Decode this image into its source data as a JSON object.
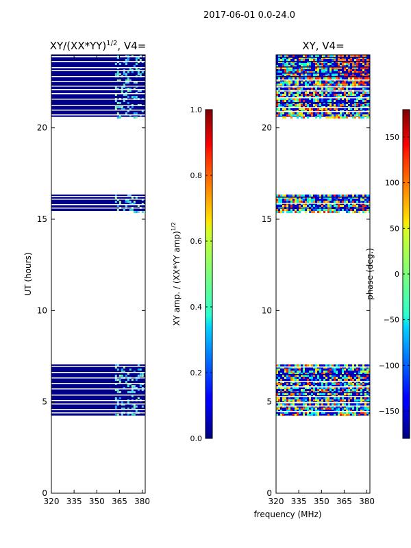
{
  "figure_title": "2017-06-01 0.0-24.0",
  "shared_xlabel": "frequency (MHz)",
  "colors": {
    "amp_fill": "#00008b",
    "amp_speckle": [
      "#6fd3ff",
      "#3fe0c8",
      "#9ff0a0",
      "#1ea0ff"
    ],
    "phase_blue": "#0000c8",
    "phase_speckle": [
      "#00e0ff",
      "#3fffa0",
      "#c8ff3c",
      "#ffe000",
      "#ff8000",
      "#ff2000",
      "#0060ff",
      "#00ffd0"
    ]
  },
  "chart_data": [
    {
      "type": "heatmap",
      "id": "amp",
      "title_main": "XY/(XX*YY)",
      "title_sup": "1/2",
      "title_tail": ", V4=",
      "xlabel": "",
      "ylabel": "UT (hours)",
      "xlim": [
        320,
        382
      ],
      "ylim": [
        0,
        24
      ],
      "xticks": [
        320,
        335,
        350,
        365,
        380
      ],
      "yticks": [
        0,
        5,
        10,
        15,
        20
      ],
      "active_channels": [
        362,
        381
      ],
      "observed_blocks": [
        {
          "start": 4.25,
          "end": 7.05
        },
        {
          "start": 15.45,
          "end": 16.35
        },
        {
          "start": 20.6,
          "end": 24.0
        }
      ]
    },
    {
      "type": "heatmap",
      "id": "phase",
      "title_main": "XY, V4=",
      "xlabel": "frequency (MHz)",
      "xlim": [
        320,
        382
      ],
      "ylim": [
        0,
        24
      ],
      "xticks": [
        320,
        335,
        350,
        365,
        380
      ],
      "yticks": [
        0,
        5,
        10,
        15,
        20
      ],
      "observed_blocks": [
        {
          "start": 4.25,
          "end": 7.05
        },
        {
          "start": 15.45,
          "end": 16.35
        },
        {
          "start": 20.6,
          "end": 24.0
        }
      ]
    },
    {
      "type": "colorbar",
      "id": "amp_cbar",
      "label_main": "XY amp. / (XX*YY amp)",
      "label_sup": "1/2",
      "range": [
        0.0,
        1.0
      ],
      "ticks": [
        "0.0",
        "0.2",
        "0.4",
        "0.6",
        "0.8",
        "1.0"
      ],
      "colormap": "jet"
    },
    {
      "type": "colorbar",
      "id": "phase_cbar",
      "label": "phase (deg.)",
      "range": [
        -180,
        180
      ],
      "ticks": [
        "−150",
        "−100",
        "−50",
        "0",
        "50",
        "100",
        "150"
      ],
      "colormap": "jet"
    }
  ]
}
